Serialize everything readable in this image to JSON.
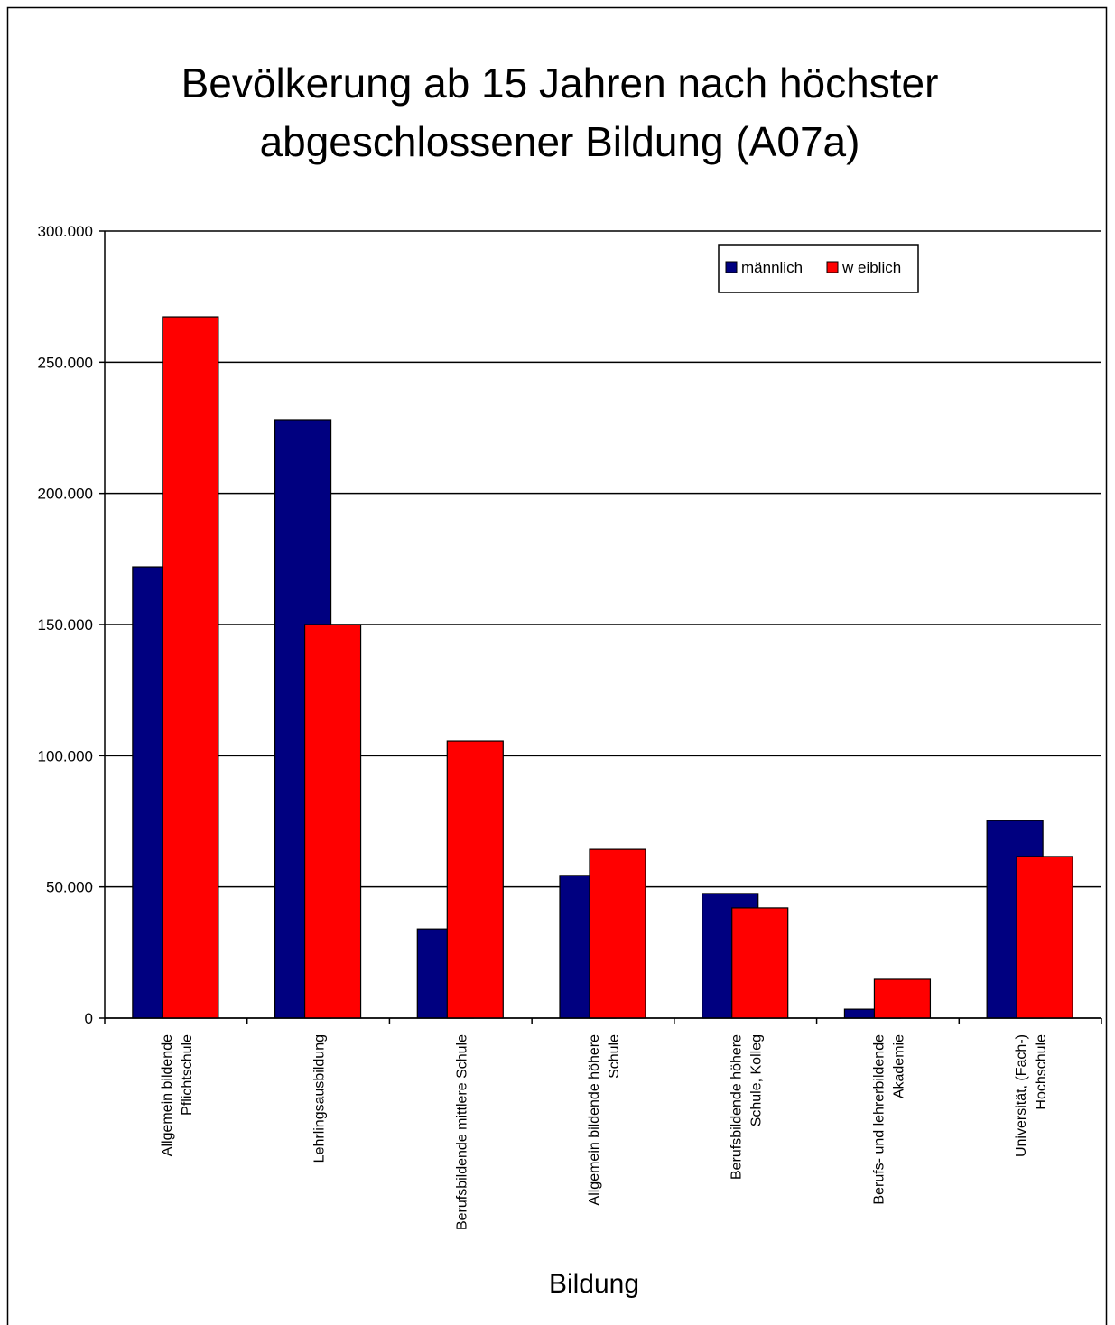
{
  "chart_data": {
    "type": "bar",
    "title": [
      "Bevölkerung ab 15 Jahren nach höchster",
      "abgeschlossener Bildung (A07a)"
    ],
    "x_label": "Bildung",
    "categories": [
      [
        "Allgemein bildende",
        "Pflichtschule"
      ],
      [
        "Lehrlingsausbildung"
      ],
      [
        "Berufsbildende mittlere Schule"
      ],
      [
        "Allgemein bildende höhere",
        "Schule"
      ],
      [
        "Berufsbildende höhere",
        "Schule, Kolleg"
      ],
      [
        "Berufs- und lehrerbildende",
        "Akademie"
      ],
      [
        "Universität, (Fach-)",
        "Hochschule"
      ]
    ],
    "series": [
      {
        "name": "männlich",
        "color": "#000080",
        "values": [
          172000,
          228100,
          34000,
          54400,
          47500,
          3400,
          75300
        ]
      },
      {
        "name": "w eiblich",
        "color": "#ff0000",
        "values": [
          267300,
          150000,
          105600,
          64300,
          42000,
          14800,
          61600
        ]
      }
    ],
    "ylim": [
      0,
      300000
    ],
    "yticks": [
      0,
      {
        "value": 50000,
        "label": "50.000"
      },
      {
        "value": 100000,
        "label": "100.000"
      },
      {
        "value": 150000,
        "label": "150.000"
      },
      {
        "value": 200000,
        "label": "200.000"
      },
      {
        "value": 250000,
        "label": "250.000"
      },
      {
        "value": 300000,
        "label": "300.000"
      }
    ],
    "grid": true,
    "legend": "top-right"
  }
}
